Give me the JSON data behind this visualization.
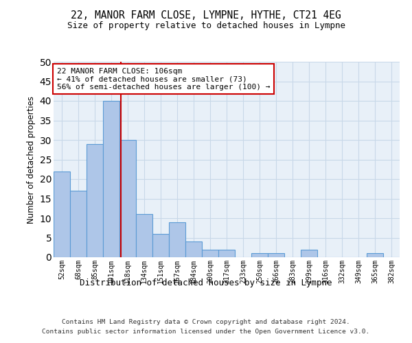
{
  "title1": "22, MANOR FARM CLOSE, LYMPNE, HYTHE, CT21 4EG",
  "title2": "Size of property relative to detached houses in Lympne",
  "xlabel": "Distribution of detached houses by size in Lympne",
  "ylabel": "Number of detached properties",
  "categories": [
    "52sqm",
    "68sqm",
    "85sqm",
    "101sqm",
    "118sqm",
    "134sqm",
    "151sqm",
    "167sqm",
    "184sqm",
    "200sqm",
    "217sqm",
    "233sqm",
    "250sqm",
    "266sqm",
    "283sqm",
    "299sqm",
    "316sqm",
    "332sqm",
    "349sqm",
    "365sqm",
    "382sqm"
  ],
  "values": [
    22,
    17,
    29,
    40,
    30,
    11,
    6,
    9,
    4,
    2,
    2,
    0,
    1,
    1,
    0,
    2,
    0,
    0,
    0,
    1,
    0
  ],
  "bar_color": "#aec6e8",
  "bar_edge_color": "#5b9bd5",
  "red_line_x": 3.6,
  "annotation_text": "22 MANOR FARM CLOSE: 106sqm\n← 41% of detached houses are smaller (73)\n56% of semi-detached houses are larger (100) →",
  "annotation_box_color": "#ffffff",
  "annotation_box_edge": "#cc0000",
  "footer1": "Contains HM Land Registry data © Crown copyright and database right 2024.",
  "footer2": "Contains public sector information licensed under the Open Government Licence v3.0.",
  "background_color": "#ffffff",
  "plot_bg_color": "#e8f0f8",
  "grid_color": "#c8d8e8",
  "ylim": [
    0,
    50
  ],
  "yticks": [
    0,
    5,
    10,
    15,
    20,
    25,
    30,
    35,
    40,
    45,
    50
  ]
}
